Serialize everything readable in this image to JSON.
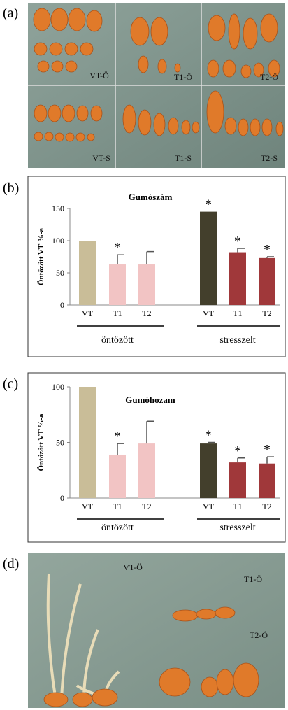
{
  "panel_labels": [
    "(a)",
    "(b)",
    "(c)",
    "(d)"
  ],
  "photo_a_labels": [
    "VT-Ö",
    "T1-Ö",
    "T2-Ö",
    "VT-S",
    "T1-S",
    "T2-S"
  ],
  "photo_d_labels": [
    "VT-Ö",
    "T1-Ö",
    "T2-Ö"
  ],
  "chart_data": [
    {
      "type": "bar",
      "title": "Gumószám",
      "y_label": "Öntözött VT %-a",
      "categories": [
        "VT",
        "T1",
        "T2",
        "VT",
        "T1",
        "T2"
      ],
      "groups": [
        "öntözött",
        "stresszelt"
      ],
      "values": [
        100,
        63,
        63,
        145,
        82,
        73
      ],
      "errors": [
        0,
        15,
        20,
        0,
        6,
        2
      ],
      "colors": [
        "#c9bd98",
        "#f2c4c4",
        "#f2c4c4",
        "#433f2c",
        "#a0383a",
        "#a0383a"
      ],
      "significance": [
        null,
        "*",
        null,
        "*",
        "*",
        "*"
      ],
      "ylim": [
        0,
        150
      ],
      "yticks": [
        0,
        50,
        100,
        150
      ]
    },
    {
      "type": "bar",
      "title": "Gumóhozam",
      "y_label": "Öntözött VT %-a",
      "categories": [
        "VT",
        "T1",
        "T2",
        "VT",
        "T1",
        "T2"
      ],
      "groups": [
        "öntözött",
        "stresszelt"
      ],
      "values": [
        100,
        39,
        49,
        49,
        32,
        31
      ],
      "errors": [
        0,
        10,
        20,
        1,
        4,
        6
      ],
      "colors": [
        "#c9bd98",
        "#f2c4c4",
        "#f2c4c4",
        "#433f2c",
        "#a0383a",
        "#a0383a"
      ],
      "significance": [
        null,
        "*",
        null,
        "*",
        "*",
        "*"
      ],
      "ylim": [
        0,
        100
      ],
      "yticks": [
        0,
        50,
        100
      ]
    }
  ]
}
